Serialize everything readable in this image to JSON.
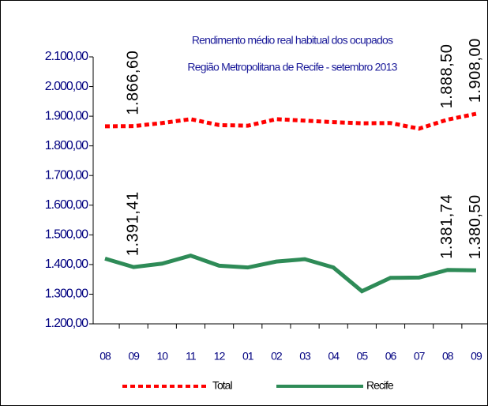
{
  "chart_data": {
    "type": "line",
    "title": [
      "Rendimento médio real habitual dos ocupados",
      "Região Metropolitana de Recife - setembro 2013"
    ],
    "categories": [
      "08",
      "09",
      "10",
      "11",
      "12",
      "01",
      "02",
      "03",
      "04",
      "05",
      "06",
      "07",
      "08",
      "09"
    ],
    "series": [
      {
        "name": "Total",
        "color": "#ff0000",
        "dashed": true,
        "values": [
          1866,
          1866.6,
          1877,
          1890,
          1870,
          1868,
          1890,
          1885,
          1880,
          1876,
          1877,
          1858,
          1888.5,
          1908
        ],
        "value_labels": [
          null,
          "1.866,60",
          null,
          null,
          null,
          null,
          null,
          null,
          null,
          null,
          null,
          null,
          "1.888,50",
          "1.908,00"
        ]
      },
      {
        "name": "Recife",
        "color": "#2e8b57",
        "dashed": false,
        "values": [
          1420,
          1391.41,
          1403,
          1430,
          1396,
          1390,
          1410,
          1418,
          1390,
          1310,
          1355,
          1356,
          1381.74,
          1380.5
        ],
        "value_labels": [
          null,
          "1.391,41",
          null,
          null,
          null,
          null,
          null,
          null,
          null,
          null,
          null,
          null,
          "1.381,74",
          "1.380,50"
        ]
      }
    ],
    "ylim": [
      1200,
      2100
    ],
    "yticks": [
      {
        "value": 1200,
        "label": "1.200,00"
      },
      {
        "value": 1300,
        "label": "1.300,00"
      },
      {
        "value": 1400,
        "label": "1.400,00"
      },
      {
        "value": 1500,
        "label": "1.500,00"
      },
      {
        "value": 1600,
        "label": "1.600,00"
      },
      {
        "value": 1700,
        "label": "1.700,00"
      },
      {
        "value": 1800,
        "label": "1.800,00"
      },
      {
        "value": 1900,
        "label": "1.900,00"
      },
      {
        "value": 2000,
        "label": "2.000,00"
      },
      {
        "value": 2100,
        "label": "2.100,00"
      }
    ],
    "legend": "bottom"
  }
}
